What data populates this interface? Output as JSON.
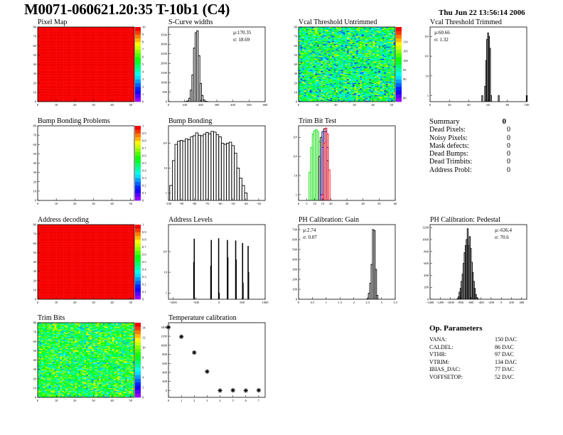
{
  "header": {
    "title": "M0071-060621.20:35 T-10b1 (C4)",
    "date": "Thu Jun 22 13:56:14 2006"
  },
  "summary": {
    "title": "Summary",
    "total": "0",
    "rows": [
      {
        "label": "Dead Pixels:",
        "value": "0"
      },
      {
        "label": "Noisy Pixels:",
        "value": "0"
      },
      {
        "label": "Mask defects:",
        "value": "0"
      },
      {
        "label": "Dead Bumps:",
        "value": "0"
      },
      {
        "label": "Dead Trimbits:",
        "value": "0"
      },
      {
        "label": "Address Probl:",
        "value": "0"
      }
    ]
  },
  "op_parameters": {
    "title": "Op. Parameters",
    "rows": [
      {
        "label": "VANA:",
        "value": "150 DAC"
      },
      {
        "label": "CALDEL:",
        "value": "86 DAC"
      },
      {
        "label": "VTHR:",
        "value": "97 DAC"
      },
      {
        "label": "VTRIM:",
        "value": "134 DAC"
      },
      {
        "label": "IBIAS_DAC:",
        "value": "77 DAC"
      },
      {
        "label": "VOFFSETOP:",
        "value": "52 DAC"
      }
    ]
  },
  "chart_data": [
    {
      "id": "pixel-map",
      "title": "Pixel Map",
      "type": "heatmap",
      "xlim": [
        0,
        52
      ],
      "ylim": [
        0,
        80
      ],
      "zlim": [
        0,
        10
      ],
      "z_mean": 10,
      "z_spread": 0,
      "xticks": [
        0,
        10,
        20,
        30,
        40,
        50
      ],
      "yticks": [
        0,
        10,
        20,
        30,
        40,
        50,
        60,
        70,
        80
      ],
      "zticks": [
        0,
        1,
        2,
        3,
        4,
        5,
        6,
        7,
        8,
        9,
        10
      ]
    },
    {
      "id": "s-curve-widths",
      "title": "S-Curve widths",
      "type": "bar",
      "log": false,
      "xlim": [
        0,
        600
      ],
      "ylim": [
        0,
        3900
      ],
      "xticks": [
        0,
        100,
        200,
        300,
        400,
        500,
        600
      ],
      "yticks": [
        0,
        500,
        1000,
        1500,
        2000,
        2500,
        3000,
        3500
      ],
      "stats": {
        "mean": "µ:170.35",
        "sigma": "σ: 18.69"
      },
      "stats_pos": "top-right",
      "series": [
        {
          "color": "#000000",
          "bin_width": 10,
          "x": [
            100,
            110,
            120,
            130,
            140,
            150,
            160,
            170,
            180,
            190,
            200,
            210,
            220,
            230,
            240
          ],
          "values": [
            0,
            10,
            40,
            180,
            600,
            1400,
            2800,
            3600,
            3700,
            2400,
            950,
            320,
            90,
            25,
            5
          ]
        }
      ]
    },
    {
      "id": "vcal-threshold-untrimmed",
      "title": "Vcal Threshold Untrimmed",
      "type": "heatmap",
      "xlim": [
        0,
        52
      ],
      "ylim": [
        0,
        80
      ],
      "zlim": [
        78,
        118
      ],
      "z_mean": 97,
      "z_spread": 9,
      "xticks": [
        0,
        10,
        20,
        30,
        40,
        50
      ],
      "yticks": [
        0,
        10,
        20,
        30,
        40,
        50,
        60,
        70,
        80
      ],
      "zticks": [
        80,
        90,
        95,
        100,
        105,
        110
      ]
    },
    {
      "id": "vcal-threshold-trimmed",
      "title": "Vcal Threshold Trimmed",
      "type": "bar",
      "log": true,
      "xlim": [
        0,
        100
      ],
      "ylim": [
        0.5,
        3000
      ],
      "xticks": [
        0,
        20,
        40,
        60,
        80,
        100
      ],
      "yticks": [
        1,
        10,
        100,
        1000
      ],
      "stats": {
        "mean": "µ:60.66",
        "sigma": "σ: 1.32"
      },
      "stats_pos": "top-left",
      "series": [
        {
          "color": "#000000",
          "bin_width": 1,
          "x": [
            54,
            55,
            56,
            57,
            58,
            59,
            60,
            61,
            62,
            63,
            64,
            71,
            100
          ],
          "values": [
            1,
            0,
            0,
            3,
            60,
            700,
            1500,
            1000,
            250,
            1,
            0,
            1,
            1
          ]
        }
      ]
    },
    {
      "id": "bump-bonding-problems",
      "title": "Bump Bonding Problems",
      "type": "heatmap",
      "xlim": [
        0,
        52
      ],
      "ylim": [
        0,
        80
      ],
      "zlim": [
        0,
        1
      ],
      "z_mean": null,
      "z_spread": 0,
      "xticks": [
        0,
        10,
        20,
        30,
        40,
        50
      ],
      "yticks": [
        0,
        10,
        20,
        30,
        40,
        50,
        60,
        70,
        80
      ],
      "zticks": [
        0,
        0.1,
        0.2,
        0.3,
        0.4,
        0.5,
        0.6,
        0.7,
        0.8,
        0.9,
        1
      ]
    },
    {
      "id": "bump-bonding",
      "title": "Bump Bonding",
      "type": "bar",
      "log": true,
      "xlim": [
        -100,
        -25
      ],
      "ylim": [
        0.5,
        500
      ],
      "xticks": [
        -100,
        -90,
        -80,
        -70,
        -60,
        -50,
        -40,
        -30
      ],
      "yticks": [
        1,
        10,
        100
      ],
      "series": [
        {
          "color": "#000000",
          "bin_width": 2,
          "x": [
            -100,
            -98,
            -96,
            -94,
            -92,
            -90,
            -88,
            -86,
            -84,
            -82,
            -80,
            -78,
            -76,
            -74,
            -72,
            -70,
            -68,
            -66,
            -64,
            -62,
            -60,
            -58,
            -56,
            -54,
            -52,
            -50,
            -48,
            -46,
            -44,
            -42,
            -40,
            -38,
            -36,
            -34,
            -32
          ],
          "values": [
            0,
            2,
            20,
            90,
            120,
            130,
            120,
            150,
            140,
            180,
            200,
            260,
            210,
            200,
            230,
            270,
            240,
            300,
            280,
            220,
            180,
            100,
            90,
            100,
            110,
            80,
            40,
            10,
            4,
            2,
            1,
            0,
            0,
            0,
            0
          ]
        }
      ]
    },
    {
      "id": "trim-bit-test",
      "title": "Trim Bit Test",
      "type": "bar",
      "log": true,
      "xlim": [
        0,
        60
      ],
      "ylim": [
        0.5,
        4000
      ],
      "xticks": [
        0,
        5,
        10,
        15,
        20,
        30,
        40,
        50,
        60
      ],
      "yticks": [
        1,
        10,
        100,
        1000
      ],
      "series": [
        {
          "color": "#00dd00",
          "bin_width": 1,
          "x": [
            7,
            8,
            9,
            10,
            11,
            12,
            13,
            14
          ],
          "values": [
            15,
            300,
            1500,
            2200,
            2500,
            2000,
            600,
            0
          ]
        },
        {
          "color": "#000000",
          "bin_width": 1,
          "x": [
            13,
            14,
            15,
            16,
            17,
            18,
            19
          ],
          "values": [
            100,
            1000,
            2000,
            2800,
            2000,
            60,
            0
          ]
        },
        {
          "color": "#0000ff",
          "bin_width": 1,
          "x": [
            14,
            15,
            16,
            17,
            18,
            19
          ],
          "values": [
            1,
            300,
            2000,
            3000,
            300,
            0
          ]
        },
        {
          "color": "#ff0000",
          "bin_width": 1,
          "x": [
            15,
            16,
            17,
            18,
            19,
            20
          ],
          "values": [
            1,
            500,
            3000,
            1500,
            20,
            0
          ]
        }
      ]
    },
    {
      "id": "address-decoding",
      "title": "Address decoding",
      "type": "heatmap",
      "xlim": [
        0,
        52
      ],
      "ylim": [
        0,
        80
      ],
      "zlim": [
        0,
        1
      ],
      "z_mean": 1,
      "z_spread": 0,
      "xticks": [
        0,
        10,
        20,
        30,
        40,
        50
      ],
      "yticks": [
        0,
        10,
        20,
        30,
        40,
        50,
        60,
        70,
        80
      ],
      "zticks": [
        0,
        0.1,
        0.2,
        0.3,
        0.4,
        0.5,
        0.6,
        0.7,
        0.8,
        0.9,
        1
      ]
    },
    {
      "id": "address-levels",
      "title": "Address Levels",
      "type": "bar",
      "log": true,
      "xlim": [
        -1100,
        1000
      ],
      "ylim": [
        0.5,
        2000
      ],
      "xticks": [
        -1000,
        -500,
        0,
        500,
        1000
      ],
      "yticks": [
        1,
        10,
        100
      ],
      "series": [
        {
          "color": "#000000",
          "bin_width": 10,
          "x": [
            -550,
            -540,
            -180,
            -170,
            0,
            -10,
            180,
            190,
            360,
            370,
            510,
            520,
            630,
            640
          ],
          "values": [
            30,
            400,
            20,
            350,
            1,
            420,
            350,
            50,
            330,
            40,
            250,
            3,
            180,
            10
          ]
        }
      ]
    },
    {
      "id": "ph-calibration-gain",
      "title": "PH Calibration: Gain",
      "type": "bar",
      "log": false,
      "xlim": [
        0,
        3.5
      ],
      "ylim": [
        0,
        750
      ],
      "xticks": [
        0,
        0.5,
        1,
        1.5,
        2,
        2.5,
        3,
        3.5
      ],
      "yticks": [
        0,
        100,
        200,
        300,
        400,
        500,
        600,
        700
      ],
      "stats": {
        "mean": "µ:2.74",
        "sigma": "σ: 0.07"
      },
      "stats_pos": "top-left",
      "series": [
        {
          "color": "#000000",
          "bin_width": 0.05,
          "x": [
            2.5,
            2.55,
            2.6,
            2.65,
            2.7,
            2.75,
            2.8,
            2.85,
            2.9
          ],
          "values": [
            5,
            60,
            160,
            350,
            700,
            690,
            300,
            40,
            0
          ]
        }
      ]
    },
    {
      "id": "ph-calibration-pedestal",
      "title": "PH Calibration: Pedestal",
      "type": "bar",
      "log": false,
      "xlim": [
        -1400,
        500
      ],
      "ylim": [
        0,
        1250
      ],
      "xticks": [
        -1400,
        -1200,
        -1000,
        -800,
        -600,
        -400,
        -200,
        0,
        200,
        400
      ],
      "yticks": [
        0,
        200,
        400,
        600,
        800,
        1000,
        1200
      ],
      "stats": {
        "mean": "µ:-636.4",
        "sigma": "σ: 70.6"
      },
      "stats_pos": "top-right",
      "series": [
        {
          "color": "#000000",
          "bin_width": 20,
          "x": [
            -860,
            -840,
            -820,
            -800,
            -780,
            -760,
            -740,
            -720,
            -700,
            -680,
            -660,
            -640,
            -620,
            -600,
            -580,
            -560,
            -540,
            -520,
            -500,
            -480,
            -460,
            -440
          ],
          "values": [
            10,
            40,
            120,
            180,
            300,
            420,
            600,
            780,
            900,
            1000,
            1180,
            900,
            1050,
            850,
            620,
            450,
            300,
            180,
            80,
            30,
            10,
            0
          ]
        }
      ]
    },
    {
      "id": "trim-bits",
      "title": "Trim Bits",
      "type": "heatmap",
      "xlim": [
        0,
        52
      ],
      "ylim": [
        0,
        80
      ],
      "zlim": [
        0,
        15
      ],
      "z_mean": 8,
      "z_spread": 3,
      "xticks": [
        0,
        10,
        20,
        30,
        40,
        50
      ],
      "yticks": [
        0,
        10,
        20,
        30,
        40,
        50,
        60,
        70,
        80
      ],
      "zticks": [
        0,
        2,
        4,
        6,
        8,
        10,
        12,
        14
      ]
    },
    {
      "id": "temperature-calibration",
      "title": "Temperature calibration",
      "type": "scatter",
      "log": false,
      "xlim": [
        0,
        7.5
      ],
      "ylim": [
        -150,
        1500
      ],
      "xticks": [
        0,
        1,
        2,
        3,
        4,
        5,
        6,
        7
      ],
      "yticks": [
        0,
        200,
        400,
        600,
        800,
        1000,
        1200,
        1400
      ],
      "series": [
        {
          "color": "#000000",
          "marker": "star",
          "x": [
            0,
            1,
            2,
            3,
            4,
            5,
            6,
            7
          ],
          "values": [
            1400,
            1190,
            840,
            420,
            0,
            5,
            0,
            5
          ]
        }
      ]
    }
  ]
}
